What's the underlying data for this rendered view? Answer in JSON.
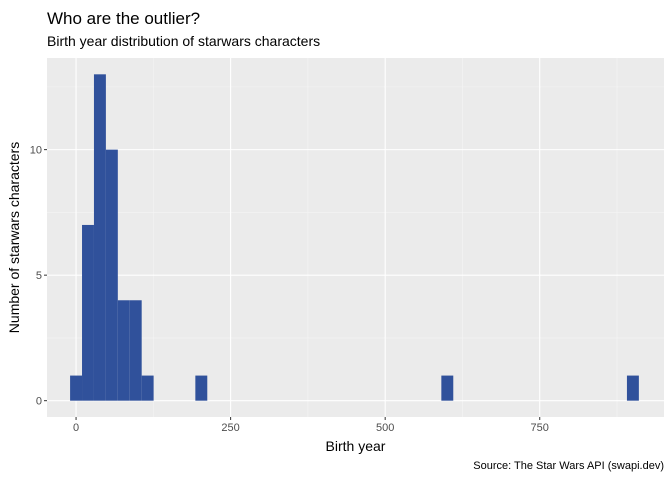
{
  "chart_data": {
    "type": "bar",
    "title": "Who are the outlier?",
    "subtitle": "Birth year distribution of starwars characters",
    "xlabel": "Birth year",
    "ylabel": "Number of starwars characters",
    "caption": "Source: The Star Wars API (swapi.dev)",
    "xlim": [
      -47,
      951
    ],
    "ylim": [
      -0.65,
      13.65
    ],
    "x_ticks": [
      0,
      250,
      500,
      750
    ],
    "x_tick_labels": [
      "0",
      "250",
      "500",
      "750"
    ],
    "y_ticks": [
      0,
      5,
      10
    ],
    "y_tick_labels": [
      "0",
      "5",
      "10"
    ],
    "bin_width": 19.3,
    "bins": [
      {
        "center": 0,
        "count": 1
      },
      {
        "center": 19.3,
        "count": 7
      },
      {
        "center": 38.6,
        "count": 13
      },
      {
        "center": 57.9,
        "count": 10
      },
      {
        "center": 77.2,
        "count": 4
      },
      {
        "center": 96.5,
        "count": 4
      },
      {
        "center": 115.8,
        "count": 1
      },
      {
        "center": 202.6,
        "count": 1
      },
      {
        "center": 600.5,
        "count": 1
      },
      {
        "center": 900.7,
        "count": 1
      }
    ],
    "grid": true,
    "colors": {
      "bar": "#30519B",
      "panel": "#EBEBEB",
      "grid_major": "#FFFFFF",
      "grid_minor": "#F5F5F5"
    }
  }
}
